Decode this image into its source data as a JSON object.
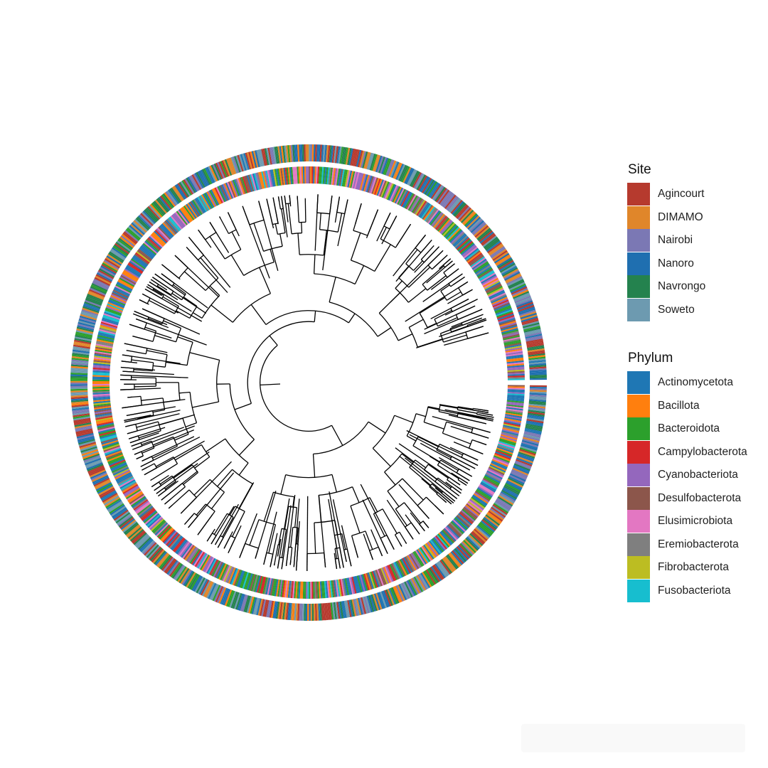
{
  "legends": {
    "site": {
      "title": "Site",
      "items": [
        {
          "label": "Agincourt",
          "color": "#B63A2E"
        },
        {
          "label": "DIMAMO",
          "color": "#E0862A"
        },
        {
          "label": "Nairobi",
          "color": "#7B78B4"
        },
        {
          "label": "Nanoro",
          "color": "#1F6FB0"
        },
        {
          "label": "Navrongo",
          "color": "#24824E"
        },
        {
          "label": "Soweto",
          "color": "#6D9AB0"
        }
      ]
    },
    "phylum": {
      "title": "Phylum",
      "items": [
        {
          "label": "Actinomycetota",
          "color": "#1F77B4"
        },
        {
          "label": "Bacillota",
          "color": "#FF7F0E"
        },
        {
          "label": "Bacteroidota",
          "color": "#2CA02C"
        },
        {
          "label": "Campylobacterota",
          "color": "#D62728"
        },
        {
          "label": "Cyanobacteriota",
          "color": "#9467BD"
        },
        {
          "label": "Desulfobacterota",
          "color": "#8C564B"
        },
        {
          "label": "Elusimicrobiota",
          "color": "#E377C2"
        },
        {
          "label": "Eremiobacterota",
          "color": "#7F7F7F"
        },
        {
          "label": "Fibrobacterota",
          "color": "#BCBD22"
        },
        {
          "label": "Fusobacteriota",
          "color": "#17BECF"
        }
      ]
    }
  },
  "tree": {
    "type": "circular-phylogeny",
    "branch_color": "#000000",
    "open_gap": "right",
    "outer_ring": "site",
    "inner_ring": "phylum"
  }
}
